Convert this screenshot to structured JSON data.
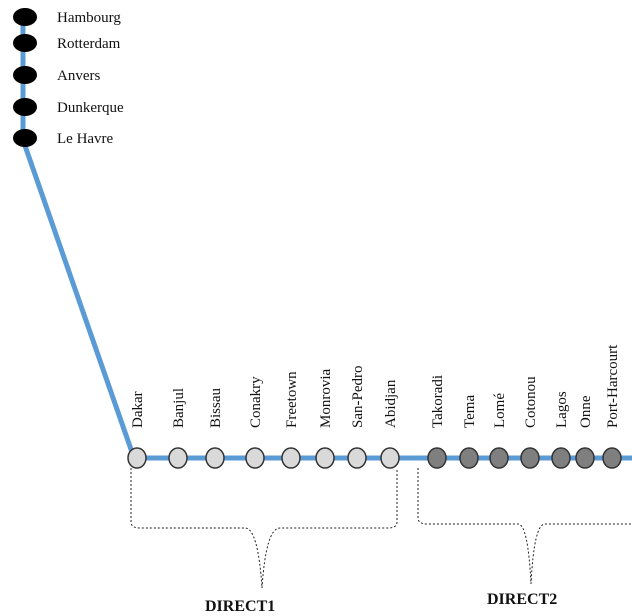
{
  "colors": {
    "route_line": "#5b9bd5",
    "europe_port": "#000000",
    "direct1_port": "#d9d9d9",
    "direct2_port": "#7f7f7f",
    "port_outline": "#333333"
  },
  "europe_ports": [
    "Hambourg",
    "Rotterdam",
    "Anvers",
    "Dunkerque",
    "Le Havre"
  ],
  "direct1": {
    "label": "DIRECT1",
    "ports": [
      "Dakar",
      "Banjul",
      "Bissau",
      "Conakry",
      "Freetown",
      "Monrovia",
      "San-Pedro",
      "Abidjan"
    ]
  },
  "direct2": {
    "label": "DIRECT2",
    "ports": [
      "Takoradi",
      "Tema",
      "Lomé",
      "Cotonou",
      "Lagos",
      "Onne",
      "Port-Harcourt"
    ]
  }
}
